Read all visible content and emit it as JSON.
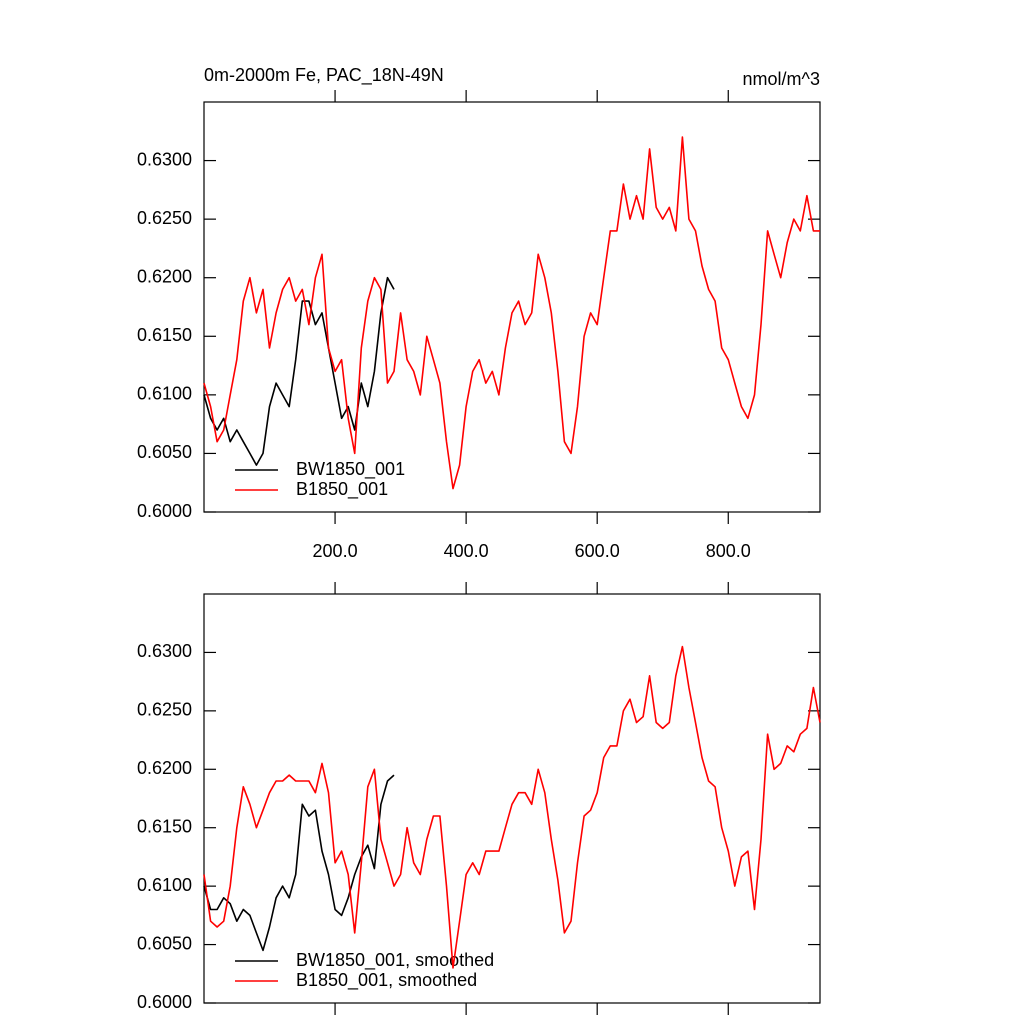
{
  "chart_data": [
    {
      "type": "line",
      "title": "0m-2000m Fe, PAC_18N-49N",
      "units": "nmol/m^3",
      "xlim": [
        0,
        940
      ],
      "ylim": [
        0.6,
        0.635
      ],
      "xticks": [
        {
          "value": 200,
          "label": "200.0"
        },
        {
          "value": 400,
          "label": "400.0"
        },
        {
          "value": 600,
          "label": "600.0"
        },
        {
          "value": 800,
          "label": "800.0"
        }
      ],
      "show_xtick_labels": true,
      "yticks": [
        {
          "value": 0.6,
          "label": "0.6000"
        },
        {
          "value": 0.605,
          "label": "0.6050"
        },
        {
          "value": 0.61,
          "label": "0.6100"
        },
        {
          "value": 0.615,
          "label": "0.6150"
        },
        {
          "value": 0.62,
          "label": "0.6200"
        },
        {
          "value": 0.625,
          "label": "0.6250"
        },
        {
          "value": 0.63,
          "label": "0.6300"
        }
      ],
      "legend": "lower left",
      "series": [
        {
          "name": "BW1850_001",
          "color": "#000000",
          "x": [
            0,
            10,
            20,
            30,
            40,
            50,
            60,
            70,
            80,
            90,
            100,
            110,
            120,
            130,
            140,
            150,
            160,
            170,
            180,
            190,
            200,
            210,
            220,
            230,
            240,
            250,
            260,
            270,
            280,
            290
          ],
          "values": [
            0.61,
            0.608,
            0.607,
            0.608,
            0.606,
            0.607,
            0.606,
            0.605,
            0.604,
            0.605,
            0.609,
            0.611,
            0.61,
            0.609,
            0.613,
            0.618,
            0.618,
            0.616,
            0.617,
            0.614,
            0.611,
            0.608,
            0.609,
            0.607,
            0.611,
            0.609,
            0.612,
            0.617,
            0.62,
            0.619
          ]
        },
        {
          "name": "B1850_001",
          "color": "#ff0000",
          "x": [
            0,
            10,
            20,
            30,
            40,
            50,
            60,
            70,
            80,
            90,
            100,
            110,
            120,
            130,
            140,
            150,
            160,
            170,
            180,
            190,
            200,
            210,
            220,
            230,
            240,
            250,
            260,
            270,
            280,
            290,
            300,
            310,
            320,
            330,
            340,
            350,
            360,
            370,
            380,
            390,
            400,
            410,
            420,
            430,
            440,
            450,
            460,
            470,
            480,
            490,
            500,
            510,
            520,
            530,
            540,
            550,
            560,
            570,
            580,
            590,
            600,
            610,
            620,
            630,
            640,
            650,
            660,
            670,
            680,
            690,
            700,
            710,
            720,
            730,
            740,
            750,
            760,
            770,
            780,
            790,
            800,
            810,
            820,
            830,
            840,
            850,
            860,
            870,
            880,
            890,
            900,
            910,
            920,
            930,
            940
          ],
          "values": [
            0.611,
            0.609,
            0.606,
            0.607,
            0.61,
            0.613,
            0.618,
            0.62,
            0.617,
            0.619,
            0.614,
            0.617,
            0.619,
            0.62,
            0.618,
            0.619,
            0.616,
            0.62,
            0.622,
            0.614,
            0.612,
            0.613,
            0.608,
            0.605,
            0.614,
            0.618,
            0.62,
            0.619,
            0.611,
            0.612,
            0.617,
            0.613,
            0.612,
            0.61,
            0.615,
            0.613,
            0.611,
            0.606,
            0.602,
            0.604,
            0.609,
            0.612,
            0.613,
            0.611,
            0.612,
            0.61,
            0.614,
            0.617,
            0.618,
            0.616,
            0.617,
            0.622,
            0.62,
            0.617,
            0.612,
            0.606,
            0.605,
            0.609,
            0.615,
            0.617,
            0.616,
            0.62,
            0.624,
            0.624,
            0.628,
            0.625,
            0.627,
            0.625,
            0.631,
            0.626,
            0.625,
            0.626,
            0.624,
            0.632,
            0.625,
            0.624,
            0.621,
            0.619,
            0.618,
            0.614,
            0.613,
            0.611,
            0.609,
            0.608,
            0.61,
            0.616,
            0.624,
            0.622,
            0.62,
            0.623,
            0.625,
            0.624,
            0.627,
            0.624,
            0.624
          ]
        }
      ]
    },
    {
      "type": "line",
      "xlim": [
        0,
        940
      ],
      "ylim": [
        0.6,
        0.635
      ],
      "xticks": [
        200,
        400,
        600,
        800
      ],
      "show_xtick_labels": false,
      "yticks": [
        {
          "value": 0.6,
          "label": "0.6000"
        },
        {
          "value": 0.605,
          "label": "0.6050"
        },
        {
          "value": 0.61,
          "label": "0.6100"
        },
        {
          "value": 0.615,
          "label": "0.6150"
        },
        {
          "value": 0.62,
          "label": "0.6200"
        },
        {
          "value": 0.625,
          "label": "0.6250"
        },
        {
          "value": 0.63,
          "label": "0.6300"
        }
      ],
      "legend": "lower left",
      "series": [
        {
          "name": "BW1850_001, smoothed",
          "color": "#000000",
          "x": [
            0,
            10,
            20,
            30,
            40,
            50,
            60,
            70,
            80,
            90,
            100,
            110,
            120,
            130,
            140,
            150,
            160,
            170,
            180,
            190,
            200,
            210,
            220,
            230,
            240,
            250,
            260,
            270,
            280,
            290
          ],
          "values": [
            0.61,
            0.608,
            0.608,
            0.609,
            0.6085,
            0.607,
            0.608,
            0.6075,
            0.606,
            0.6045,
            0.6065,
            0.609,
            0.61,
            0.609,
            0.611,
            0.617,
            0.616,
            0.6165,
            0.613,
            0.611,
            0.608,
            0.6075,
            0.609,
            0.611,
            0.6125,
            0.6135,
            0.6115,
            0.617,
            0.619,
            0.6195
          ]
        },
        {
          "name": "B1850_001, smoothed",
          "color": "#ff0000",
          "x": [
            0,
            10,
            20,
            30,
            40,
            50,
            60,
            70,
            80,
            90,
            100,
            110,
            120,
            130,
            140,
            150,
            160,
            170,
            180,
            190,
            200,
            210,
            220,
            230,
            240,
            250,
            260,
            270,
            280,
            290,
            300,
            310,
            320,
            330,
            340,
            350,
            360,
            370,
            380,
            390,
            400,
            410,
            420,
            430,
            440,
            450,
            460,
            470,
            480,
            490,
            500,
            510,
            520,
            530,
            540,
            550,
            560,
            570,
            580,
            590,
            600,
            610,
            620,
            630,
            640,
            650,
            660,
            670,
            680,
            690,
            700,
            710,
            720,
            730,
            740,
            750,
            760,
            770,
            780,
            790,
            800,
            810,
            820,
            830,
            840,
            850,
            860,
            870,
            880,
            890,
            900,
            910,
            920,
            930,
            940
          ],
          "values": [
            0.611,
            0.607,
            0.6065,
            0.607,
            0.61,
            0.615,
            0.6185,
            0.617,
            0.615,
            0.6165,
            0.618,
            0.619,
            0.619,
            0.6195,
            0.619,
            0.619,
            0.619,
            0.618,
            0.6205,
            0.618,
            0.612,
            0.613,
            0.611,
            0.606,
            0.612,
            0.6185,
            0.62,
            0.614,
            0.612,
            0.61,
            0.611,
            0.615,
            0.612,
            0.611,
            0.614,
            0.616,
            0.616,
            0.61,
            0.603,
            0.607,
            0.611,
            0.612,
            0.611,
            0.613,
            0.613,
            0.613,
            0.615,
            0.617,
            0.618,
            0.618,
            0.617,
            0.62,
            0.618,
            0.614,
            0.6105,
            0.606,
            0.607,
            0.612,
            0.616,
            0.6165,
            0.618,
            0.621,
            0.622,
            0.622,
            0.625,
            0.626,
            0.624,
            0.6245,
            0.628,
            0.624,
            0.6235,
            0.624,
            0.628,
            0.6305,
            0.627,
            0.624,
            0.621,
            0.619,
            0.6185,
            0.615,
            0.613,
            0.61,
            0.6125,
            0.613,
            0.608,
            0.614,
            0.623,
            0.62,
            0.6205,
            0.622,
            0.6215,
            0.623,
            0.6235,
            0.627,
            0.624
          ]
        }
      ]
    }
  ]
}
